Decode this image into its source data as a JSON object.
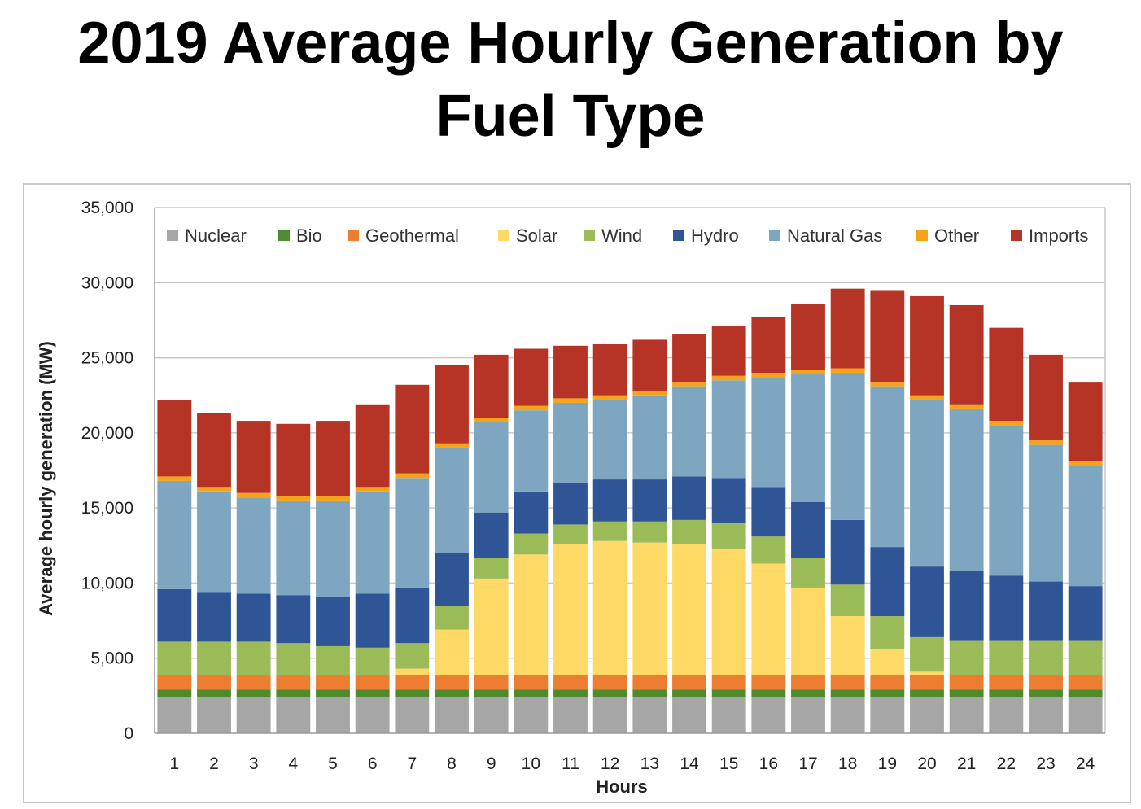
{
  "title_line1": "2019 Average Hourly Generation by",
  "title_line2": "Fuel Type",
  "chart_data": {
    "type": "bar",
    "stacked": true,
    "title": "2019 Average Hourly Generation by Fuel Type",
    "xlabel": "Hours",
    "ylabel": "Average hourly generation (MW)",
    "ylim": [
      0,
      35000
    ],
    "yticks": [
      "0",
      "5,000",
      "10,000",
      "15,000",
      "20,000",
      "25,000",
      "30,000",
      "35,000"
    ],
    "grid": true,
    "legend_position": "top",
    "categories": [
      "1",
      "2",
      "3",
      "4",
      "5",
      "6",
      "7",
      "8",
      "9",
      "10",
      "11",
      "12",
      "13",
      "14",
      "15",
      "16",
      "17",
      "18",
      "19",
      "20",
      "21",
      "22",
      "23",
      "24"
    ],
    "series": [
      {
        "name": "Nuclear",
        "color": "#a6a6a6",
        "values": [
          2400,
          2400,
          2400,
          2400,
          2400,
          2400,
          2400,
          2400,
          2400,
          2400,
          2400,
          2400,
          2400,
          2400,
          2400,
          2400,
          2400,
          2400,
          2400,
          2400,
          2400,
          2400,
          2400,
          2400
        ]
      },
      {
        "name": "Bio",
        "color": "#4f8a2e",
        "values": [
          500,
          500,
          500,
          500,
          500,
          500,
          500,
          500,
          500,
          500,
          500,
          500,
          500,
          500,
          500,
          500,
          500,
          500,
          500,
          500,
          500,
          500,
          500,
          500
        ]
      },
      {
        "name": "Geothermal",
        "color": "#ed7d31",
        "values": [
          1000,
          1000,
          1000,
          1000,
          1000,
          1000,
          1000,
          1000,
          1000,
          1000,
          1000,
          1000,
          1000,
          1000,
          1000,
          1000,
          1000,
          1000,
          1000,
          1000,
          1000,
          1000,
          1000,
          1000
        ]
      },
      {
        "name": "Solar",
        "color": "#ffd966",
        "values": [
          0,
          0,
          0,
          0,
          0,
          0,
          400,
          3000,
          6400,
          8000,
          8700,
          8900,
          8800,
          8700,
          8400,
          7400,
          5800,
          3900,
          1700,
          200,
          0,
          0,
          0,
          0
        ]
      },
      {
        "name": "Wind",
        "color": "#9bbb59",
        "values": [
          2200,
          2200,
          2200,
          2100,
          1900,
          1800,
          1700,
          1600,
          1400,
          1400,
          1300,
          1300,
          1400,
          1600,
          1700,
          1800,
          2000,
          2100,
          2200,
          2300,
          2300,
          2300,
          2300,
          2300
        ]
      },
      {
        "name": "Hydro",
        "color": "#2f5597",
        "values": [
          3500,
          3300,
          3200,
          3200,
          3300,
          3600,
          3700,
          3500,
          3000,
          2800,
          2800,
          2800,
          2800,
          2900,
          3000,
          3300,
          3700,
          4300,
          4600,
          4700,
          4600,
          4300,
          3900,
          3600
        ]
      },
      {
        "name": "Natural Gas",
        "color": "#7ea6c0",
        "values": [
          7200,
          6700,
          6400,
          6300,
          6400,
          6800,
          7300,
          7000,
          6000,
          5400,
          5300,
          5300,
          5600,
          6000,
          6500,
          7300,
          8500,
          9800,
          10700,
          11100,
          10800,
          10000,
          9100,
          8000
        ]
      },
      {
        "name": "Other",
        "color": "#f5a318",
        "values": [
          300,
          300,
          300,
          300,
          300,
          300,
          300,
          300,
          300,
          300,
          300,
          300,
          300,
          300,
          300,
          300,
          300,
          300,
          300,
          300,
          300,
          300,
          300,
          300
        ]
      },
      {
        "name": "Imports",
        "color": "#b63425",
        "values": [
          5100,
          4900,
          4800,
          4800,
          5000,
          5500,
          5900,
          5200,
          4200,
          3800,
          3500,
          3400,
          3400,
          3200,
          3300,
          3700,
          4400,
          5300,
          6100,
          6600,
          6600,
          6200,
          5700,
          5300
        ]
      }
    ]
  }
}
